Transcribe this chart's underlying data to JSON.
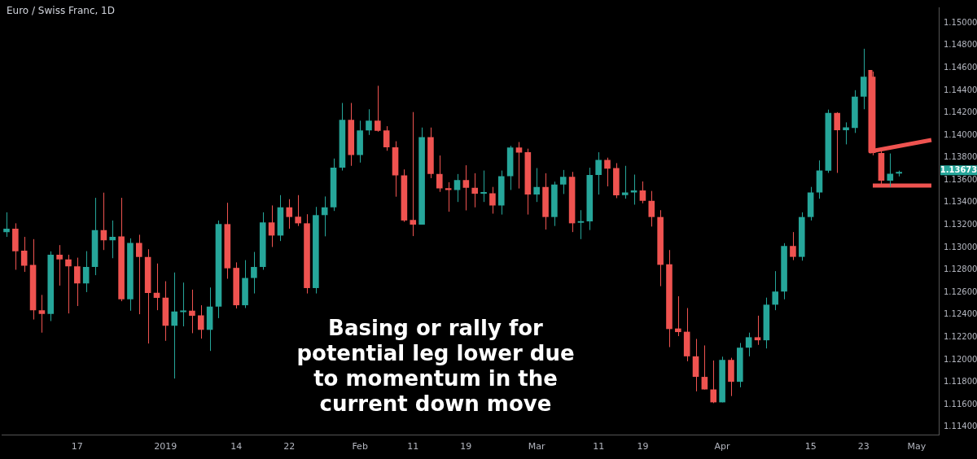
{
  "chart_data": {
    "type": "candlestick",
    "title": "Euro / Swiss Franc, 1D",
    "categories": [
      null,
      null,
      null,
      null,
      null,
      null,
      null,
      null,
      "17",
      null,
      null,
      null,
      null,
      null,
      null,
      null,
      null,
      null,
      "2019",
      null,
      null,
      null,
      null,
      null,
      null,
      null,
      "14",
      null,
      null,
      null,
      null,
      null,
      "22",
      null,
      null,
      null,
      null,
      null,
      null,
      null,
      "Feb",
      null,
      null,
      null,
      null,
      null,
      "11",
      null,
      null,
      null,
      null,
      null,
      "19",
      null,
      null,
      null,
      null,
      null,
      null,
      null,
      "Mar",
      null,
      null,
      null,
      null,
      null,
      null,
      "11",
      null,
      null,
      null,
      null,
      "19",
      null,
      null,
      null,
      null,
      null,
      null,
      null,
      null,
      "Apr",
      null,
      null,
      null,
      null,
      null,
      null,
      null,
      null,
      null,
      "15",
      null,
      null,
      null,
      null,
      null,
      "23",
      null,
      null,
      null,
      null,
      null,
      "May",
      null,
      null
    ],
    "ohlc": [
      [
        1.13137,
        1.13313,
        1.13094,
        1.13167
      ],
      [
        1.13167,
        1.13215,
        1.12801,
        1.12965
      ],
      [
        1.12972,
        1.13094,
        1.12782,
        1.12838
      ],
      [
        1.12845,
        1.13074,
        1.12358,
        1.12441
      ],
      [
        1.12441,
        1.12577,
        1.12241,
        1.12407
      ],
      [
        1.12407,
        1.12965,
        1.12344,
        1.12935
      ],
      [
        1.12935,
        1.13021,
        1.1266,
        1.12894
      ],
      [
        1.12894,
        1.12935,
        1.12412,
        1.12831
      ],
      [
        1.12831,
        1.12909,
        1.12478,
        1.1268
      ],
      [
        1.1268,
        1.12967,
        1.12602,
        1.12826
      ],
      [
        1.12826,
        1.13442,
        1.12753,
        1.13155
      ],
      [
        1.13155,
        1.13488,
        1.12977,
        1.13064
      ],
      [
        1.13064,
        1.1324,
        1.12904,
        1.13094
      ],
      [
        1.13099,
        1.13442,
        1.12521,
        1.12538
      ],
      [
        1.12538,
        1.13081,
        1.12436,
        1.1304
      ],
      [
        1.1304,
        1.13113,
        1.12405,
        1.12916
      ],
      [
        1.12916,
        1.12984,
        1.12144,
        1.12594
      ],
      [
        1.12597,
        1.12857,
        1.12441,
        1.12551
      ],
      [
        1.12553,
        1.12699,
        1.12168,
        1.12302
      ],
      [
        1.12302,
        1.12777,
        1.11832,
        1.12429
      ],
      [
        1.12424,
        1.12687,
        1.12297,
        1.12436
      ],
      [
        1.12436,
        1.12624,
        1.12236,
        1.12392
      ],
      [
        1.12395,
        1.12485,
        1.12188,
        1.12266
      ],
      [
        1.12266,
        1.12643,
        1.12078,
        1.12473
      ],
      [
        1.12473,
        1.1324,
        1.1237,
        1.13208
      ],
      [
        1.13208,
        1.13398,
        1.12721,
        1.12814
      ],
      [
        1.12818,
        1.12867,
        1.12456,
        1.12485
      ],
      [
        1.12485,
        1.12887,
        1.1246,
        1.12728
      ],
      [
        1.12728,
        1.1296,
        1.1259,
        1.12826
      ],
      [
        1.12826,
        1.13313,
        1.12801,
        1.13223
      ],
      [
        1.13223,
        1.13374,
        1.13004,
        1.13106
      ],
      [
        1.13106,
        1.13466,
        1.13057,
        1.13357
      ],
      [
        1.13357,
        1.1343,
        1.13167,
        1.13271
      ],
      [
        1.13274,
        1.13466,
        1.13191,
        1.13215
      ],
      [
        1.13215,
        1.13296,
        1.1259,
        1.12638
      ],
      [
        1.12638,
        1.13361,
        1.1259,
        1.13288
      ],
      [
        1.13288,
        1.13454,
        1.13099,
        1.13357
      ],
      [
        1.13357,
        1.13792,
        1.13325,
        1.1371
      ],
      [
        1.1371,
        1.14287,
        1.13685,
        1.14136
      ],
      [
        1.14136,
        1.14287,
        1.13727,
        1.13824
      ],
      [
        1.13824,
        1.14129,
        1.13756,
        1.14043
      ],
      [
        1.14043,
        1.14231,
        1.14002,
        1.14129
      ],
      [
        1.14129,
        1.1444,
        1.14031,
        1.14038
      ],
      [
        1.14043,
        1.1408,
        1.13861,
        1.13892
      ],
      [
        1.13892,
        1.13946,
        1.13452,
        1.13642
      ],
      [
        1.13642,
        1.13695,
        1.13228,
        1.1324
      ],
      [
        1.13245,
        1.14206,
        1.13101,
        1.13203
      ],
      [
        1.13203,
        1.14068,
        1.13203,
        1.13982
      ],
      [
        1.13982,
        1.14068,
        1.13617,
        1.13654
      ],
      [
        1.13654,
        1.13819,
        1.13495,
        1.13525
      ],
      [
        1.13527,
        1.13581,
        1.13318,
        1.13512
      ],
      [
        1.13512,
        1.13654,
        1.13405,
        1.136
      ],
      [
        1.136,
        1.13732,
        1.1333,
        1.13532
      ],
      [
        1.13532,
        1.13661,
        1.13357,
        1.13478
      ],
      [
        1.13478,
        1.13685,
        1.13405,
        1.13483
      ],
      [
        1.13483,
        1.13539,
        1.13301,
        1.13374
      ],
      [
        1.13374,
        1.13685,
        1.13293,
        1.13634
      ],
      [
        1.13634,
        1.13905,
        1.13512,
        1.1389
      ],
      [
        1.1389,
        1.13939,
        1.13525,
        1.13844
      ],
      [
        1.13848,
        1.1388,
        1.13293,
        1.13471
      ],
      [
        1.13471,
        1.13707,
        1.13405,
        1.13539
      ],
      [
        1.13539,
        1.13661,
        1.13159,
        1.13271
      ],
      [
        1.13271,
        1.13586,
        1.13191,
        1.13561
      ],
      [
        1.13561,
        1.1369,
        1.13476,
        1.13629
      ],
      [
        1.13629,
        1.13673,
        1.13137,
        1.13215
      ],
      [
        1.1322,
        1.13332,
        1.13074,
        1.13228
      ],
      [
        1.13232,
        1.1371,
        1.13155,
        1.13646
      ],
      [
        1.13646,
        1.13848,
        1.13471,
        1.1378
      ],
      [
        1.1378,
        1.138,
        1.13544,
        1.13702
      ],
      [
        1.13707,
        1.13751,
        1.13439,
        1.13464
      ],
      [
        1.13466,
        1.13727,
        1.13434,
        1.1349
      ],
      [
        1.1349,
        1.13649,
        1.13381,
        1.13508
      ],
      [
        1.13508,
        1.13588,
        1.13393,
        1.13415
      ],
      [
        1.13415,
        1.13503,
        1.13186,
        1.13271
      ],
      [
        1.13271,
        1.13332,
        1.12655,
        1.12845
      ],
      [
        1.1285,
        1.12977,
        1.12112,
        1.12273
      ],
      [
        1.12278,
        1.12565,
        1.1221,
        1.12246
      ],
      [
        1.12249,
        1.1246,
        1.11986,
        1.1203
      ],
      [
        1.1203,
        1.12185,
        1.11718,
        1.11847
      ],
      [
        1.11847,
        1.12127,
        1.11735,
        1.11735
      ],
      [
        1.11735,
        1.11993,
        1.11613,
        1.1162
      ],
      [
        1.1162,
        1.12027,
        1.1162,
        1.11998
      ],
      [
        1.11998,
        1.12017,
        1.11676,
        1.11803
      ],
      [
        1.11803,
        1.12149,
        1.11754,
        1.12107
      ],
      [
        1.12107,
        1.12241,
        1.1203,
        1.122
      ],
      [
        1.122,
        1.12392,
        1.12132,
        1.12173
      ],
      [
        1.12173,
        1.12553,
        1.121,
        1.1249
      ],
      [
        1.1249,
        1.12789,
        1.12441,
        1.12607
      ],
      [
        1.12607,
        1.13038,
        1.12538,
        1.13013
      ],
      [
        1.13013,
        1.13137,
        1.12887,
        1.12916
      ],
      [
        1.12916,
        1.13313,
        1.12882,
        1.13271
      ],
      [
        1.13271,
        1.13539,
        1.1324,
        1.1349
      ],
      [
        1.1349,
        1.13775,
        1.13434,
        1.13685
      ],
      [
        1.13684,
        1.14228,
        1.13664,
        1.14198
      ],
      [
        1.14198,
        1.14205,
        1.13664,
        1.14045
      ],
      [
        1.14045,
        1.14114,
        1.13918,
        1.1407
      ],
      [
        1.14065,
        1.14401,
        1.1402,
        1.14343
      ],
      [
        1.14343,
        1.1477,
        1.14231,
        1.14521
      ],
      [
        1.14521,
        1.14567,
        1.13821,
        1.13842
      ],
      [
        1.13842,
        1.13887,
        1.13562,
        1.13595
      ],
      [
        1.13595,
        1.13837,
        1.13541,
        1.13656
      ],
      [
        1.13658,
        1.13684,
        1.13633,
        1.13673
      ],
      null,
      null,
      null,
      null
    ],
    "colors": [
      "#26a69a",
      "#ef5350",
      "#ef5350",
      "#ef5350",
      "#ef5350",
      "#26a69a",
      "#ef5350",
      "#ef5350",
      "#ef5350",
      "#26a69a",
      "#26a69a",
      "#ef5350",
      "#26a69a",
      "#ef5350",
      "#26a69a",
      "#ef5350",
      "#ef5350",
      "#ef5350",
      "#ef5350",
      "#26a69a",
      "#26a69a",
      "#ef5350",
      "#ef5350",
      "#26a69a",
      "#26a69a",
      "#ef5350",
      "#ef5350",
      "#26a69a",
      "#26a69a",
      "#26a69a",
      "#ef5350",
      "#26a69a",
      "#ef5350",
      "#ef5350",
      "#ef5350",
      "#26a69a",
      "#26a69a",
      "#26a69a",
      "#26a69a",
      "#ef5350",
      "#26a69a",
      "#26a69a",
      "#ef5350",
      "#ef5350",
      "#ef5350",
      "#ef5350",
      "#ef5350",
      "#26a69a",
      "#ef5350",
      "#ef5350",
      "#ef5350",
      "#26a69a",
      "#ef5350",
      "#ef5350",
      "#26a69a",
      "#ef5350",
      "#26a69a",
      "#26a69a",
      "#ef5350",
      "#ef5350",
      "#26a69a",
      "#ef5350",
      "#26a69a",
      "#26a69a",
      "#ef5350",
      "#26a69a",
      "#26a69a",
      "#26a69a",
      "#ef5350",
      "#ef5350",
      "#26a69a",
      "#26a69a",
      "#ef5350",
      "#ef5350",
      "#ef5350",
      "#ef5350",
      "#ef5350",
      "#ef5350",
      "#ef5350",
      "#ef5350",
      "#ef5350",
      "#26a69a",
      "#ef5350",
      "#26a69a",
      "#26a69a",
      "#ef5350",
      "#26a69a",
      "#26a69a",
      "#26a69a",
      "#ef5350",
      "#26a69a",
      "#26a69a",
      "#26a69a",
      "#26a69a",
      "#ef5350",
      "#26a69a",
      "#26a69a",
      "#26a69a",
      "#ef5350",
      "#ef5350",
      "#26a69a",
      "#26a69a",
      null,
      null,
      null,
      null
    ],
    "ylim": [
      1.11327,
      1.15139
    ],
    "yticks": [
      {
        "value": 1.114,
        "label": "1.11400"
      },
      {
        "value": 1.116,
        "label": "1.11600"
      },
      {
        "value": 1.118,
        "label": "1.11800"
      },
      {
        "value": 1.12,
        "label": "1.12000"
      },
      {
        "value": 1.122,
        "label": "1.12200"
      },
      {
        "value": 1.124,
        "label": "1.12400"
      },
      {
        "value": 1.126,
        "label": "1.12600"
      },
      {
        "value": 1.128,
        "label": "1.12800"
      },
      {
        "value": 1.13,
        "label": "1.13000"
      },
      {
        "value": 1.132,
        "label": "1.13200"
      },
      {
        "value": 1.134,
        "label": "1.13400"
      },
      {
        "value": 1.136,
        "label": "1.13600"
      },
      {
        "value": 1.138,
        "label": "1.13800"
      },
      {
        "value": 1.14,
        "label": "1.14000"
      },
      {
        "value": 1.142,
        "label": "1.14200"
      },
      {
        "value": 1.144,
        "label": "1.14400"
      },
      {
        "value": 1.146,
        "label": "1.14600"
      },
      {
        "value": 1.148,
        "label": "1.14800"
      },
      {
        "value": 1.15,
        "label": "1.15000"
      }
    ],
    "annotations": [
      "Basing or rally for potential leg lower due to momentum in the current down move",
      "1.13673"
    ]
  }
}
